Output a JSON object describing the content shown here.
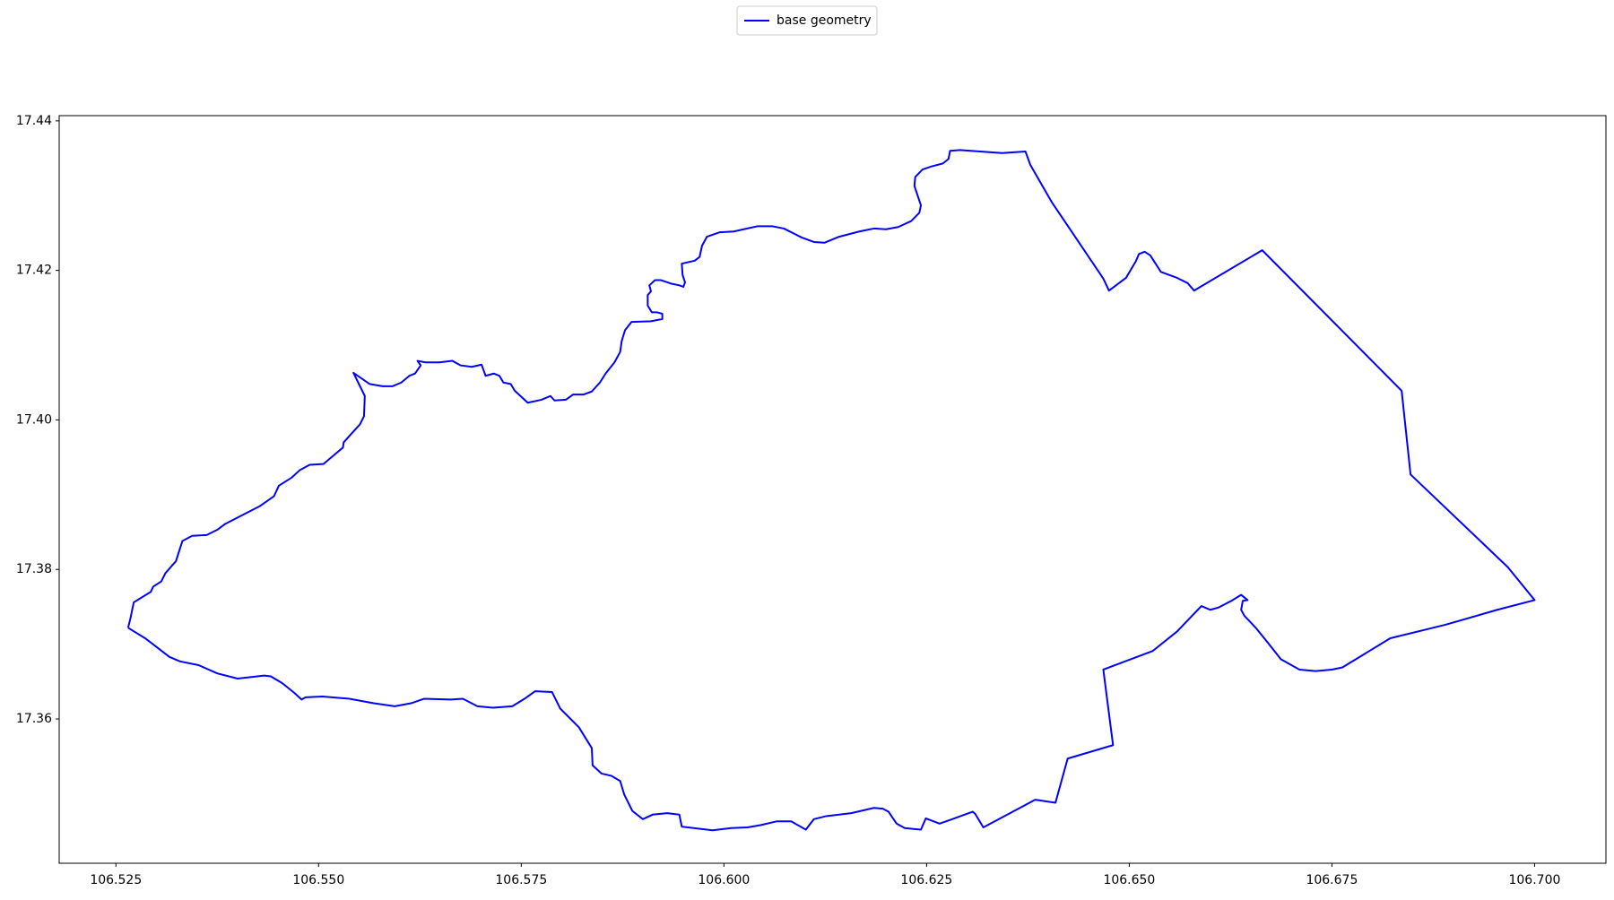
{
  "chart_data": {
    "type": "line",
    "legend": "upper center",
    "xlim": [
      106.518,
      106.7088
    ],
    "ylim": [
      17.3407,
      17.4407
    ],
    "xticks": [
      106.525,
      {
        "value": 106.55,
        "label": "106.550"
      },
      106.575,
      {
        "value": 106.6,
        "label": "106.600"
      },
      106.625,
      {
        "value": 106.65,
        "label": "106.650"
      },
      106.675,
      {
        "value": 106.7,
        "label": "106.700"
      }
    ],
    "yticks": [
      17.36,
      17.38,
      {
        "value": 17.4,
        "label": "17.40"
      },
      17.42,
      17.44
    ],
    "x": [
      106.5265,
      106.5268,
      106.5272,
      106.5293,
      106.5296,
      106.5306,
      106.5311,
      106.5324,
      106.5332,
      106.5344,
      106.5362,
      106.5375,
      106.5385,
      106.5403,
      106.5428,
      106.5445,
      106.5451,
      106.5467,
      106.5477,
      106.5489,
      106.5506,
      106.553,
      106.5531,
      106.554,
      106.5551,
      106.5556,
      106.5557,
      106.5543,
      106.5563,
      106.5579,
      106.5591,
      106.5602,
      106.5612,
      106.5619,
      106.5626,
      106.5622,
      106.5632,
      106.5649,
      106.5665,
      106.5675,
      106.5689,
      106.5701,
      106.5706,
      106.5716,
      106.5723,
      106.5728,
      106.5737,
      106.5742,
      106.5758,
      106.5775,
      106.5786,
      106.5791,
      106.5805,
      106.5814,
      106.5827,
      106.5837,
      106.5847,
      106.5854,
      106.5865,
      106.5872,
      106.5874,
      106.5878,
      106.5886,
      106.591,
      106.5924,
      106.5924,
      106.5917,
      106.5911,
      106.5906,
      106.5906,
      106.591,
      106.5908,
      106.5915,
      106.5922,
      106.5936,
      106.5945,
      106.595,
      106.5952,
      106.5949,
      106.5948,
      106.5964,
      106.597,
      106.5973,
      106.5979,
      106.5995,
      106.6012,
      106.6041,
      106.606,
      106.6074,
      106.6096,
      106.6111,
      106.6124,
      106.6142,
      106.6167,
      106.6185,
      106.62,
      106.6215,
      106.6231,
      106.6241,
      106.6243,
      106.6235,
      106.6236,
      106.6245,
      106.6256,
      106.627,
      106.6277,
      106.6279,
      106.6291,
      106.6343,
      106.6372,
      106.6378,
      106.6404,
      106.6468,
      106.6475,
      106.6496,
      106.6508,
      106.6512,
      106.6519,
      106.6526,
      106.6539,
      106.6559,
      106.6572,
      106.658,
      106.6664,
      106.6836,
      106.6847,
      106.6967,
      106.7,
      106.6954,
      106.689,
      106.6822,
      106.6763,
      106.675,
      106.673,
      106.671,
      106.6687,
      106.6671,
      106.6656,
      106.6642,
      106.6638,
      106.664,
      106.6646,
      106.6638,
      106.6626,
      106.661,
      106.66,
      106.6589,
      106.6559,
      106.6529,
      106.6468,
      106.648,
      106.6424,
      106.6409,
      106.6384,
      106.632,
      106.631,
      106.6307,
      106.6279,
      106.6266,
      106.6249,
      106.6243,
      106.6223,
      106.6213,
      106.6203,
      106.6196,
      106.6185,
      106.6157,
      106.6126,
      106.6111,
      106.6101,
      106.6083,
      106.6065,
      106.6045,
      106.6029,
      106.6009,
      106.5986,
      106.5948,
      106.5945,
      106.593,
      106.5912,
      106.59,
      106.5887,
      106.5877,
      106.5872,
      106.5861,
      106.5849,
      106.5838,
      106.5837,
      106.5821,
      106.5798,
      106.5788,
      106.5767,
      106.5754,
      106.5739,
      106.5715,
      106.5696,
      106.5678,
      106.5663,
      106.563,
      106.5614,
      106.5594,
      106.5568,
      106.5538,
      106.5505,
      106.5484,
      106.5479,
      106.547,
      106.5455,
      106.5441,
      106.5433,
      106.54,
      106.5375,
      106.5352,
      106.5329,
      106.5316,
      106.5286,
      106.5265
    ],
    "series": [
      {
        "name": "base geometry",
        "color": "#0000ff",
        "values": [
          17.3722,
          17.3735,
          17.3756,
          17.377,
          17.3777,
          17.3784,
          17.3795,
          17.3811,
          17.3838,
          17.3845,
          17.3846,
          17.3853,
          17.3861,
          17.3871,
          17.3885,
          17.3898,
          17.3912,
          17.3923,
          17.3933,
          17.394,
          17.3941,
          17.3963,
          17.397,
          17.3981,
          17.3994,
          17.4005,
          17.4032,
          17.4063,
          17.4048,
          17.4045,
          17.4045,
          17.405,
          17.4059,
          17.4062,
          17.4073,
          17.4079,
          17.4077,
          17.4077,
          17.4079,
          17.4073,
          17.4071,
          17.4074,
          17.4059,
          17.4062,
          17.4059,
          17.405,
          17.4048,
          17.4039,
          17.4023,
          17.4027,
          17.4032,
          17.4026,
          17.4027,
          17.4034,
          17.4034,
          17.4038,
          17.405,
          17.4062,
          17.4077,
          17.4091,
          17.4106,
          17.412,
          17.4131,
          17.4132,
          17.4135,
          17.4142,
          17.4144,
          17.4144,
          17.4153,
          17.4167,
          17.4172,
          17.418,
          17.4187,
          17.4187,
          17.4182,
          17.418,
          17.4178,
          17.4184,
          17.4194,
          17.4209,
          17.4213,
          17.4218,
          17.4233,
          17.4245,
          17.4251,
          17.4252,
          17.4259,
          17.4259,
          17.4256,
          17.4244,
          17.4238,
          17.4237,
          17.4245,
          17.4252,
          17.4256,
          17.4255,
          17.4258,
          17.4266,
          17.4277,
          17.4287,
          17.4313,
          17.4325,
          17.4335,
          17.4339,
          17.4343,
          17.4349,
          17.436,
          17.4361,
          17.4357,
          17.4359,
          17.4341,
          17.4292,
          17.4189,
          17.4173,
          17.419,
          17.4212,
          17.4222,
          17.4225,
          17.422,
          17.4198,
          17.419,
          17.4183,
          17.4173,
          17.4227,
          17.4039,
          17.3927,
          17.3803,
          17.3759,
          17.3746,
          17.3726,
          17.3708,
          17.3669,
          17.3666,
          17.3664,
          17.3666,
          17.368,
          17.3702,
          17.3722,
          17.3738,
          17.3746,
          17.3758,
          17.3759,
          17.3766,
          17.3758,
          17.3749,
          17.3746,
          17.3751,
          17.3717,
          17.3691,
          17.3666,
          17.3565,
          17.3547,
          17.3488,
          17.3492,
          17.3455,
          17.3473,
          17.3476,
          17.3465,
          17.346,
          17.3467,
          17.3452,
          17.3454,
          17.346,
          17.3476,
          17.348,
          17.3481,
          17.3474,
          17.347,
          17.3466,
          17.3452,
          17.3463,
          17.3463,
          17.3458,
          17.3455,
          17.3454,
          17.3451,
          17.3456,
          17.3472,
          17.3474,
          17.3472,
          17.3466,
          17.3477,
          17.3499,
          17.3517,
          17.3524,
          17.3527,
          17.3538,
          17.3561,
          17.3589,
          17.3614,
          17.3636,
          17.3637,
          17.3627,
          17.3617,
          17.3615,
          17.3617,
          17.3627,
          17.3626,
          17.3627,
          17.3621,
          17.3617,
          17.3621,
          17.3627,
          17.363,
          17.3629,
          17.3626,
          17.3635,
          17.3648,
          17.3657,
          17.3658,
          17.3654,
          17.3661,
          17.3672,
          17.3677,
          17.3683,
          17.3708,
          17.3722
        ]
      }
    ]
  }
}
